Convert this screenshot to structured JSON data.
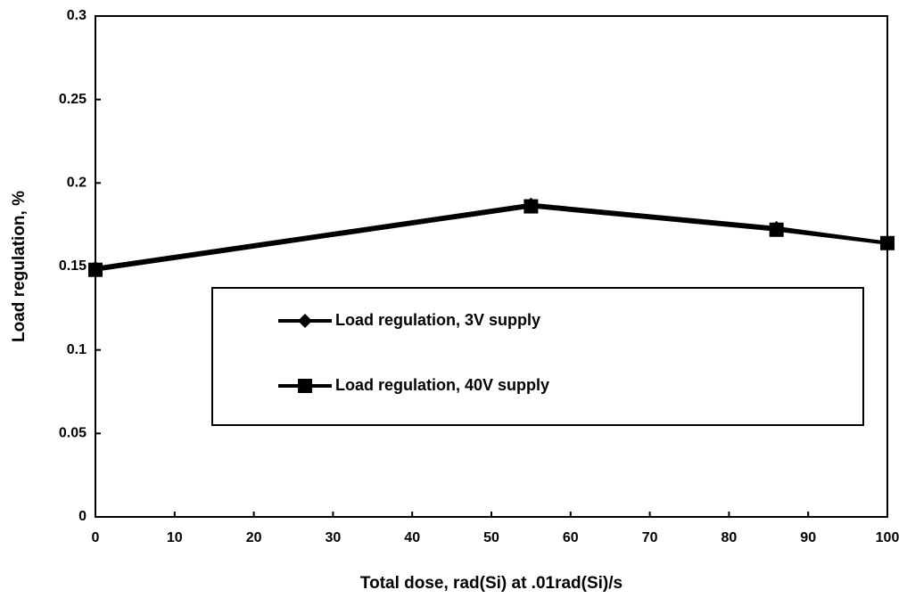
{
  "chart_data": {
    "type": "line",
    "x_label": "Total dose, rad(Si) at .01rad(Si)/s",
    "y_label": "Load regulation, %",
    "x": [
      0,
      55,
      86,
      100
    ],
    "series": [
      {
        "name": "Load regulation, 3V supply",
        "color": "#000000",
        "marker": "diamond",
        "values": [
          0.149,
          0.187,
          0.173,
          0.164
        ]
      },
      {
        "name": "Load regulation, 40V supply",
        "color": "#000000",
        "marker": "square",
        "values": [
          0.148,
          0.186,
          0.172,
          0.164
        ]
      }
    ],
    "xlim": [
      0,
      100
    ],
    "xticks": [
      0,
      10,
      20,
      30,
      40,
      50,
      60,
      70,
      80,
      90,
      100
    ],
    "ylim": [
      0,
      0.3
    ],
    "yticks": [
      0,
      0.05,
      0.1,
      0.15,
      0.2,
      0.25,
      0.3
    ],
    "grid": false,
    "legend": "center"
  }
}
